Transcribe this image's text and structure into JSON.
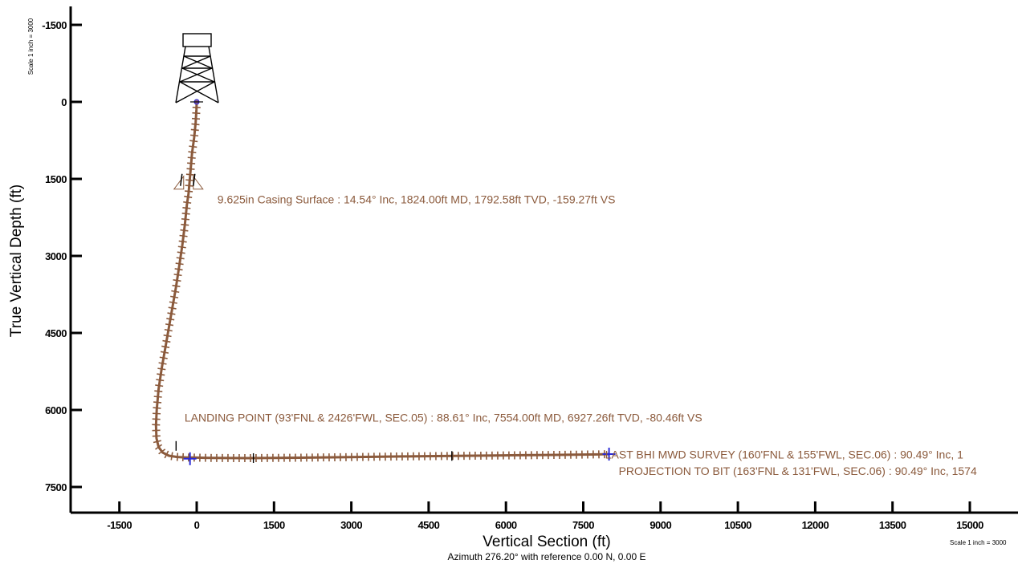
{
  "chart_data": {
    "type": "line",
    "xlabel": "Vertical Section (ft)",
    "ylabel": "True Vertical Depth (ft)",
    "subtitle": "Azimuth 276.20° with reference 0.00 N, 0.00 E",
    "scale_y": "Scale 1 inch = 3000",
    "scale_x": "Scale 1 inch = 3000",
    "x_ticks": [
      -1500,
      0,
      1500,
      3000,
      4500,
      6000,
      7500,
      9000,
      10500,
      12000,
      13500,
      15000
    ],
    "y_ticks": [
      -1500,
      0,
      1500,
      3000,
      4500,
      6000,
      7500
    ],
    "xlim": [
      -2400,
      16000
    ],
    "ylim": [
      -1900,
      8000
    ],
    "y_inverted": true,
    "line_color": "#8b5a3c",
    "series": [
      {
        "x": [
          0,
          -5,
          -20,
          -50,
          -90,
          -125,
          -159.27,
          -190,
          -230,
          -280,
          -340,
          -400,
          -470,
          -540,
          -610,
          -680,
          -740,
          -775,
          -790,
          -780,
          -740,
          -660,
          -540,
          -380,
          -200,
          -80.46,
          300,
          1000,
          2000,
          3000,
          4000,
          5000,
          6000,
          7000,
          7800,
          8000
        ],
        "y": [
          0,
          150,
          400,
          700,
          1000,
          1400,
          1792.58,
          2000,
          2400,
          2800,
          3200,
          3600,
          4000,
          4400,
          4800,
          5200,
          5600,
          6000,
          6300,
          6550,
          6720,
          6830,
          6890,
          6915,
          6925,
          6927.26,
          6935,
          6938,
          6930,
          6918,
          6905,
          6895,
          6885,
          6875,
          6865,
          6860
        ]
      }
    ],
    "annotations": [
      {
        "text": "9.625in Casing Surface : 14.54° Inc, 1824.00ft MD, 1792.58ft TVD, -159.27ft VS",
        "x": -159.27,
        "y": 1792.58
      },
      {
        "text": "LANDING POINT (93'FNL & 2426'FWL, SEC.05) : 88.61° Inc, 7554.00ft MD, 6927.26ft TVD, -80.46ft VS",
        "x": -80.46,
        "y": 6927.26
      },
      {
        "text": "LAST BHI MWD SURVEY (160'FNL & 155'FWL, SEC.06) : 90.49° Inc, 1",
        "x": 7800,
        "y": 6865
      },
      {
        "text": "PROJECTION TO BIT (163'FNL & 131'FWL, SEC.06) : 90.49° Inc, 1574",
        "x": 8000,
        "y": 6860
      }
    ]
  }
}
